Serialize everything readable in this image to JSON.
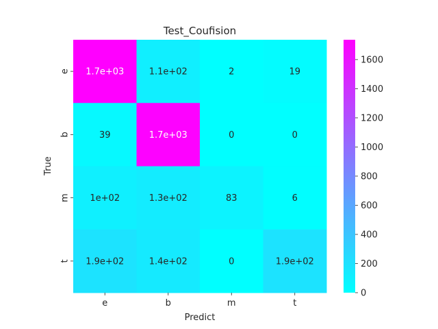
{
  "chart_data": {
    "type": "heatmap",
    "title": "Test_Coufision",
    "xlabel": "Predict",
    "ylabel": "True",
    "x_categories": [
      "e",
      "b",
      "m",
      "t"
    ],
    "y_categories": [
      "e",
      "b",
      "m",
      "t"
    ],
    "values": [
      [
        1736,
        110,
        2,
        19
      ],
      [
        39,
        1720,
        0,
        0
      ],
      [
        100,
        130,
        83,
        6
      ],
      [
        190,
        140,
        0,
        190
      ]
    ],
    "annotations": [
      [
        "1.7e+03",
        "1.1e+02",
        "2",
        "19"
      ],
      [
        "39",
        "1.7e+03",
        "0",
        "0"
      ],
      [
        "1e+02",
        "1.3e+02",
        "83",
        "6"
      ],
      [
        "1.9e+02",
        "1.4e+02",
        "0",
        "1.9e+02"
      ]
    ],
    "colormap": "cool",
    "color_low": "#00ffff",
    "color_high": "#ff00ff",
    "vmin": 0,
    "vmax": 1736,
    "colorbar_ticks": [
      0,
      200,
      400,
      600,
      800,
      1000,
      1200,
      1400,
      1600
    ]
  }
}
